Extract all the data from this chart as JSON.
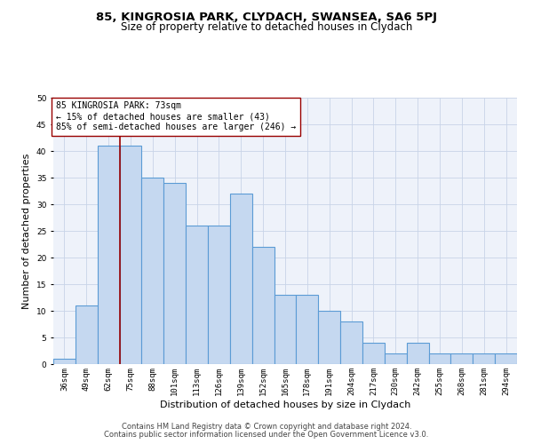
{
  "title1": "85, KINGROSIA PARK, CLYDACH, SWANSEA, SA6 5PJ",
  "title2": "Size of property relative to detached houses in Clydach",
  "xlabel": "Distribution of detached houses by size in Clydach",
  "ylabel": "Number of detached properties",
  "bins": [
    "36sqm",
    "49sqm",
    "62sqm",
    "75sqm",
    "88sqm",
    "101sqm",
    "113sqm",
    "126sqm",
    "139sqm",
    "152sqm",
    "165sqm",
    "178sqm",
    "191sqm",
    "204sqm",
    "217sqm",
    "230sqm",
    "242sqm",
    "255sqm",
    "268sqm",
    "281sqm",
    "294sqm"
  ],
  "values": [
    1,
    11,
    41,
    41,
    35,
    34,
    26,
    26,
    32,
    22,
    13,
    13,
    10,
    8,
    4,
    2,
    4,
    2,
    2,
    2,
    2
  ],
  "bar_color": "#c5d8f0",
  "bar_edge_color": "#5b9bd5",
  "bar_lw": 0.8,
  "vline_x_idx": 2,
  "vline_color": "#990000",
  "annotation_text": "85 KINGROSIA PARK: 73sqm\n← 15% of detached houses are smaller (43)\n85% of semi-detached houses are larger (246) →",
  "annotation_box_color": "white",
  "annotation_box_edge": "#990000",
  "ylim": [
    0,
    50
  ],
  "yticks": [
    0,
    5,
    10,
    15,
    20,
    25,
    30,
    35,
    40,
    45,
    50
  ],
  "grid_color": "#c8d4e8",
  "bg_color": "#eef2fa",
  "footer1": "Contains HM Land Registry data © Crown copyright and database right 2024.",
  "footer2": "Contains public sector information licensed under the Open Government Licence v3.0.",
  "title1_fontsize": 9.5,
  "title2_fontsize": 8.5,
  "xlabel_fontsize": 8,
  "ylabel_fontsize": 8,
  "tick_fontsize": 6.5,
  "annotation_fontsize": 7,
  "footer_fontsize": 6
}
